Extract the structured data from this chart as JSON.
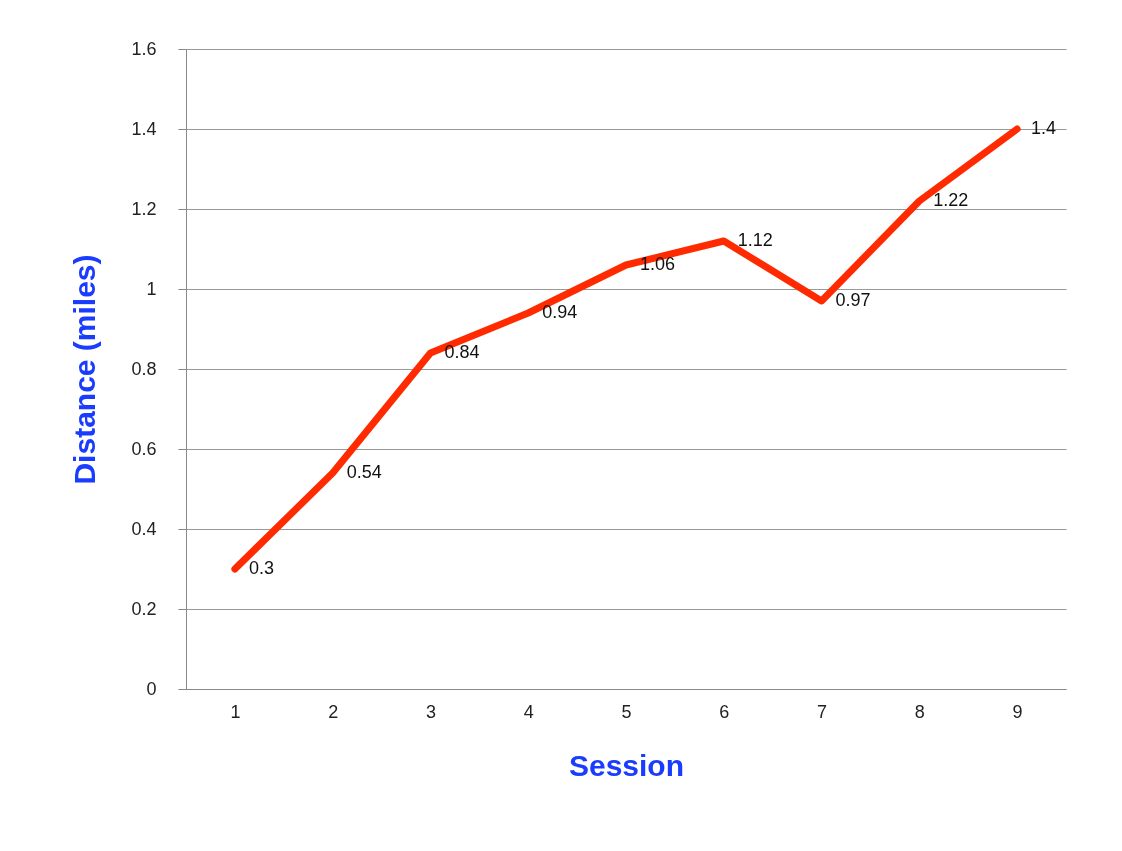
{
  "chart_data": {
    "type": "line",
    "xlabel": "Session",
    "ylabel": "Distance (miles)",
    "categories": [
      "1",
      "2",
      "3",
      "4",
      "5",
      "6",
      "7",
      "8",
      "9"
    ],
    "series": [
      {
        "color": "#ff2a00",
        "values": [
          0.3,
          0.54,
          0.84,
          0.94,
          1.06,
          1.12,
          0.97,
          1.22,
          1.4
        ]
      }
    ],
    "ylim": [
      0,
      1.6
    ],
    "yticks": [
      0,
      0.2,
      0.4,
      0.6,
      0.8,
      1,
      1.2,
      1.4,
      1.6
    ],
    "grid": "y",
    "data_labels": true,
    "marker": "none",
    "line_style": "solid"
  }
}
